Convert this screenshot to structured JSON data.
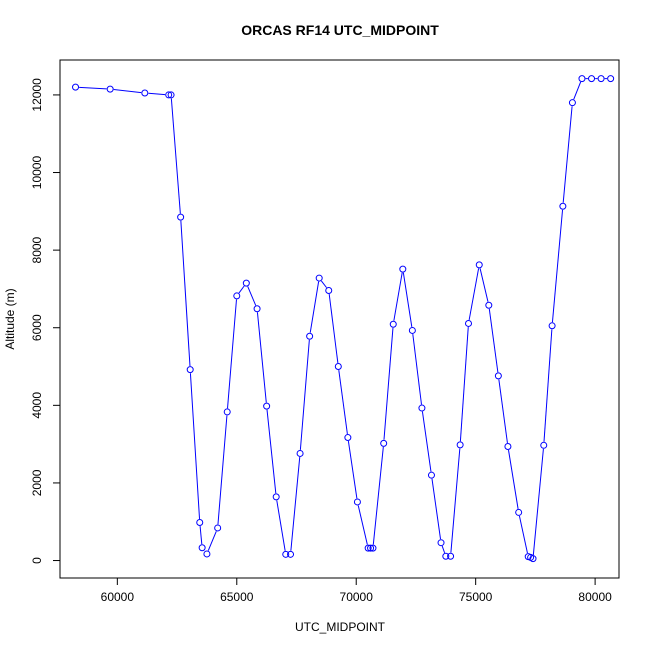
{
  "chart_data": {
    "type": "line",
    "title": "ORCAS RF14 UTC_MIDPOINT",
    "xlabel": "UTC_MIDPOINT",
    "ylabel": "Altitude (m)",
    "xlim": [
      57600,
      81000
    ],
    "ylim": [
      -450,
      12900
    ],
    "x_ticks": [
      60000,
      65000,
      70000,
      75000,
      80000
    ],
    "x_tick_labels": [
      "60000",
      "65000",
      "70000",
      "75000",
      "80000"
    ],
    "y_ticks": [
      0,
      2000,
      4000,
      6000,
      8000,
      10000,
      12000
    ],
    "y_tick_labels": [
      "0",
      "2000",
      "4000",
      "6000",
      "8000",
      "10000",
      "12000"
    ],
    "grid": false,
    "colors": {
      "series": "#0000ff",
      "axis": "#000000"
    },
    "series": [
      {
        "x": [
          58250,
          59700,
          61150,
          62150,
          62250,
          62650,
          63050,
          63450,
          63550,
          63750,
          64200,
          64600,
          65000,
          65400,
          65850,
          66250,
          66650,
          67050,
          67250,
          67650,
          68050,
          68450,
          68850,
          69250,
          69650,
          70050,
          70500,
          70600,
          70700,
          71150,
          71550,
          71950,
          72350,
          72750,
          73150,
          73550,
          73750,
          73950,
          74350,
          74700,
          75150,
          75550,
          75950,
          76350,
          76800,
          77200,
          77300,
          77400,
          77850,
          78200,
          78650,
          79050,
          79450,
          79850,
          80250,
          80650
        ],
        "y": [
          12200,
          12150,
          12050,
          12000,
          12000,
          8850,
          4920,
          980,
          330,
          170,
          840,
          3830,
          6820,
          7150,
          6490,
          3980,
          1640,
          160,
          160,
          2760,
          5780,
          7280,
          6960,
          5000,
          3170,
          1510,
          320,
          320,
          320,
          3020,
          6090,
          7510,
          5930,
          3930,
          2200,
          460,
          110,
          110,
          2980,
          6110,
          7620,
          6580,
          4760,
          2940,
          1240,
          100,
          80,
          50,
          2970,
          6050,
          9130,
          11800,
          12420,
          12420,
          12420,
          12420
        ]
      }
    ]
  }
}
